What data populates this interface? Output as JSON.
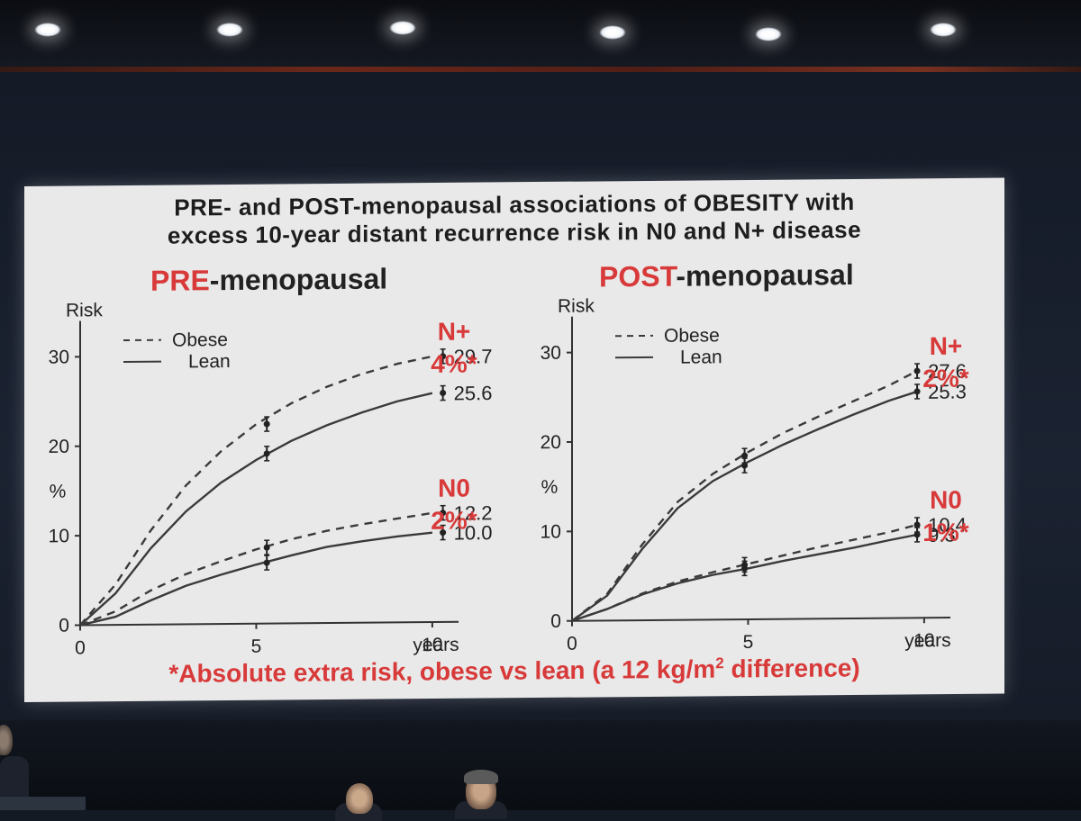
{
  "slide": {
    "title_line1": "PRE- and POST-menopausal associations of OBESITY with",
    "title_line2": "excess 10-year distant recurrence risk in N0 and N+ disease",
    "footnote_main": "*Absolute extra risk, obese vs lean (a 12 kg/m",
    "footnote_sup": "2",
    "footnote_end": " difference)"
  },
  "colors": {
    "accent_red": "#d83a3a",
    "line_color": "#3a3a3a",
    "slide_bg": "#e9e9e9"
  },
  "chart_data": [
    {
      "type": "line",
      "panel_title_accent": "PRE",
      "panel_title_rest": "-menopausal",
      "ylabel_top": "Risk",
      "ylabel_mid": "%",
      "xlabel": "years",
      "xlim": [
        0,
        11
      ],
      "ylim": [
        0,
        32
      ],
      "xticks": [
        0,
        5,
        10
      ],
      "yticks": [
        0,
        10,
        20,
        30
      ],
      "legend_position": "top-left",
      "legend": [
        {
          "label": "Obese",
          "style": "dashed"
        },
        {
          "label": "Lean",
          "style": "solid"
        }
      ],
      "series": [
        {
          "group": "N+",
          "style": "dashed",
          "x": [
            0,
            1,
            2,
            3,
            4,
            5,
            6,
            7,
            8,
            9,
            10
          ],
          "y": [
            0,
            4.5,
            10.5,
            15.5,
            19.3,
            22.3,
            24.6,
            26.4,
            27.8,
            28.9,
            29.7
          ],
          "ci_x": [
            5.3,
            10.3
          ],
          "ci_y": [
            22.3,
            29.7
          ],
          "end_label": "29.7"
        },
        {
          "group": "N+",
          "style": "solid",
          "x": [
            0,
            1,
            2,
            3,
            4,
            5,
            6,
            7,
            8,
            9,
            10
          ],
          "y": [
            0,
            3.5,
            8.5,
            12.6,
            15.8,
            18.3,
            20.4,
            22.1,
            23.5,
            24.7,
            25.6
          ],
          "ci_x": [
            5.3,
            10.3
          ],
          "ci_y": [
            19.0,
            25.6
          ],
          "end_label": "25.6"
        },
        {
          "group": "N0",
          "style": "dashed",
          "x": [
            0,
            1,
            2,
            3,
            4,
            5,
            6,
            7,
            8,
            9,
            10
          ],
          "y": [
            0,
            1.5,
            3.8,
            5.6,
            7.0,
            8.3,
            9.4,
            10.3,
            11.0,
            11.6,
            12.2
          ],
          "ci_x": [
            5.3,
            10.3
          ],
          "ci_y": [
            8.5,
            12.2
          ],
          "end_label": "12.2"
        },
        {
          "group": "N0",
          "style": "solid",
          "x": [
            0,
            1,
            2,
            3,
            4,
            5,
            6,
            7,
            8,
            9,
            10
          ],
          "y": [
            0,
            0.9,
            2.7,
            4.3,
            5.5,
            6.6,
            7.6,
            8.5,
            9.1,
            9.6,
            10.0
          ],
          "ci_x": [
            5.3,
            10.3
          ],
          "ci_y": [
            6.8,
            10.0
          ],
          "end_label": "10.0"
        }
      ],
      "annotations": [
        {
          "group_label": "N+",
          "extra_risk": "4%*",
          "y": 29.7
        },
        {
          "group_label": "N0",
          "extra_risk": "2%*",
          "y": 12.2
        }
      ]
    },
    {
      "type": "line",
      "panel_title_accent": "POST",
      "panel_title_rest": "-menopausal",
      "ylabel_top": "Risk",
      "ylabel_mid": "%",
      "xlabel": "years",
      "xlim": [
        0,
        11
      ],
      "ylim": [
        0,
        32
      ],
      "xticks": [
        0,
        5,
        10
      ],
      "yticks": [
        0,
        10,
        20,
        30
      ],
      "legend_position": "top-left",
      "legend": [
        {
          "label": "Obese",
          "style": "dashed"
        },
        {
          "label": "Lean",
          "style": "solid"
        }
      ],
      "series": [
        {
          "group": "N+",
          "style": "dashed",
          "x": [
            0,
            1,
            2,
            3,
            4,
            5,
            6,
            7,
            8,
            9,
            9.8
          ],
          "y": [
            0,
            3.0,
            8.5,
            13.2,
            16.3,
            18.7,
            20.8,
            22.6,
            24.3,
            26.0,
            27.6
          ],
          "ci_x": [
            4.9,
            9.8
          ],
          "ci_y": [
            18.3,
            27.6
          ],
          "end_label": "27.6"
        },
        {
          "group": "N+",
          "style": "solid",
          "x": [
            0,
            1,
            2,
            3,
            4,
            5,
            6,
            7,
            8,
            9,
            9.8
          ],
          "y": [
            0,
            2.8,
            8.0,
            12.5,
            15.5,
            17.6,
            19.5,
            21.2,
            22.8,
            24.3,
            25.3
          ],
          "ci_x": [
            4.9,
            9.8
          ],
          "ci_y": [
            17.2,
            25.3
          ],
          "end_label": "25.3"
        },
        {
          "group": "N0",
          "style": "dashed",
          "x": [
            0,
            1,
            2,
            3,
            4,
            5,
            6,
            7,
            8,
            9,
            9.8
          ],
          "y": [
            0,
            1.3,
            3.0,
            4.3,
            5.3,
            6.2,
            7.1,
            8.0,
            8.8,
            9.6,
            10.4
          ],
          "ci_x": [
            4.9,
            9.8
          ],
          "ci_y": [
            6.1,
            10.4
          ],
          "end_label": "10.4"
        },
        {
          "group": "N0",
          "style": "solid",
          "x": [
            0,
            1,
            2,
            3,
            4,
            5,
            6,
            7,
            8,
            9,
            9.8
          ],
          "y": [
            0,
            1.3,
            2.9,
            4.1,
            5.0,
            5.7,
            6.5,
            7.2,
            7.9,
            8.7,
            9.3
          ],
          "ci_x": [
            4.9,
            9.8
          ],
          "ci_y": [
            5.7,
            9.3
          ],
          "end_label": "9.3"
        }
      ],
      "annotations": [
        {
          "group_label": "N+",
          "extra_risk": "2%*",
          "y": 27.6
        },
        {
          "group_label": "N0",
          "extra_risk": "1%*",
          "y": 10.4
        }
      ]
    }
  ]
}
